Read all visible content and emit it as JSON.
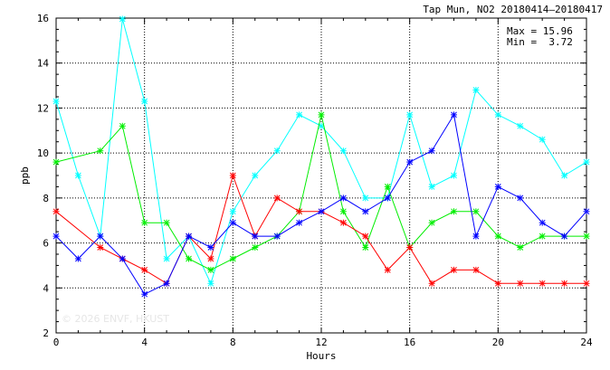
{
  "chart_data": {
    "type": "line",
    "title": "Tap Mun, NO2 20180414–20180417",
    "xlabel": "Hours",
    "ylabel": "ppb",
    "xlim": [
      0,
      24
    ],
    "ylim": [
      2,
      16
    ],
    "xticks": [
      0,
      4,
      8,
      12,
      16,
      20,
      24
    ],
    "yticks": [
      2,
      4,
      6,
      8,
      10,
      12,
      14,
      16
    ],
    "grid": true,
    "annotations": {
      "max": "Max = 15.96",
      "min": "Min =  3.72"
    },
    "watermark": "© 2026  ENVF, HKUST",
    "x": [
      0,
      1,
      2,
      3,
      4,
      5,
      6,
      7,
      8,
      9,
      10,
      11,
      12,
      13,
      14,
      15,
      16,
      17,
      18,
      19,
      20,
      21,
      22,
      23,
      24
    ],
    "series": [
      {
        "color": "#00ffff",
        "values": [
          12.3,
          9.0,
          6.3,
          15.96,
          12.3,
          5.3,
          6.3,
          4.2,
          7.4,
          9.0,
          10.1,
          11.7,
          11.2,
          10.1,
          8.0,
          8.0,
          11.7,
          8.5,
          9.0,
          12.8,
          11.7,
          11.2,
          10.6,
          9.0,
          9.6
        ]
      },
      {
        "color": "#00ee00",
        "values": [
          9.6,
          null,
          10.1,
          11.2,
          6.9,
          6.9,
          5.3,
          4.8,
          5.3,
          5.8,
          6.3,
          7.4,
          11.7,
          7.4,
          5.8,
          8.5,
          5.8,
          6.9,
          7.4,
          7.4,
          6.3,
          5.8,
          6.3,
          6.3,
          6.3
        ]
      },
      {
        "color": "#ff0000",
        "values": [
          7.4,
          null,
          5.8,
          5.3,
          4.8,
          4.2,
          6.3,
          5.3,
          9.0,
          6.3,
          8.0,
          7.4,
          7.4,
          6.9,
          6.3,
          4.8,
          5.8,
          4.2,
          4.8,
          4.8,
          4.2,
          4.2,
          4.2,
          4.2,
          4.2
        ]
      },
      {
        "color": "#0000ff",
        "values": [
          6.3,
          5.3,
          6.3,
          5.3,
          3.72,
          4.2,
          6.3,
          5.8,
          6.9,
          6.3,
          6.3,
          6.9,
          7.4,
          8.0,
          7.4,
          8.0,
          9.6,
          10.1,
          11.7,
          6.3,
          8.5,
          8.0,
          6.9,
          6.3,
          7.4
        ]
      }
    ]
  }
}
